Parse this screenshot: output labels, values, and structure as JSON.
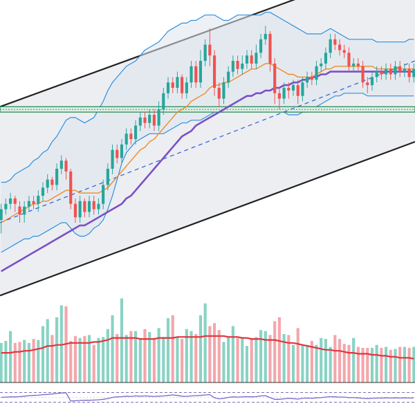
{
  "chart_data": {
    "type": "candlestick",
    "colors": {
      "up": "#26a69a",
      "down": "#ef5350",
      "volume_up": "#89d3c4",
      "volume_down": "#f4a6ab",
      "channel_fill": "#eceef2",
      "channel_line": "#222222",
      "bollinger": "#2f8fdc",
      "bollinger_fill": "#dfe6ee",
      "ma_fast": "#f08a24",
      "ma_slow": "#7b4fc4",
      "support_zone": "#2e8b57",
      "trend_dashed": "#3a66d8",
      "volume_ma": "#e0343e",
      "rsi": "#7d63c8",
      "rsi_guides": "#7a6fb0"
    },
    "price_panel": {
      "ylim": [
        0,
        100
      ],
      "candles": [
        [
          21,
          25,
          18,
          27,
          16
        ],
        [
          25,
          27,
          24,
          29,
          23
        ],
        [
          27,
          29,
          26,
          31,
          25
        ],
        [
          29,
          27,
          25,
          30,
          24
        ],
        [
          26,
          23,
          21,
          28,
          20
        ],
        [
          23,
          26,
          22,
          28,
          20
        ],
        [
          26,
          28,
          25,
          30,
          24
        ],
        [
          28,
          27,
          26,
          30,
          25
        ],
        [
          27,
          30,
          26,
          32,
          24
        ],
        [
          30,
          33,
          29,
          35,
          28
        ],
        [
          33,
          36,
          32,
          38,
          31
        ],
        [
          36,
          34,
          33,
          37,
          32
        ],
        [
          34,
          40,
          33,
          42,
          32
        ],
        [
          40,
          43,
          39,
          45,
          38
        ],
        [
          43,
          39,
          38,
          44,
          36
        ],
        [
          39,
          27,
          26,
          40,
          25
        ],
        [
          27,
          22,
          21,
          29,
          20
        ],
        [
          22,
          28,
          21,
          30,
          20
        ],
        [
          28,
          24,
          23,
          29,
          22
        ],
        [
          24,
          28,
          23,
          30,
          22
        ],
        [
          28,
          25,
          24,
          30,
          23
        ],
        [
          25,
          27,
          24,
          29,
          23
        ],
        [
          27,
          34,
          26,
          36,
          25
        ],
        [
          34,
          40,
          33,
          42,
          32
        ],
        [
          40,
          47,
          39,
          49,
          38
        ],
        [
          47,
          44,
          43,
          49,
          42
        ],
        [
          44,
          49,
          43,
          51,
          42
        ],
        [
          49,
          53,
          48,
          55,
          47
        ],
        [
          53,
          51,
          50,
          55,
          49
        ],
        [
          51,
          56,
          50,
          58,
          49
        ],
        [
          56,
          59,
          55,
          61,
          54
        ],
        [
          59,
          57,
          56,
          61,
          55
        ],
        [
          57,
          60,
          56,
          62,
          55
        ],
        [
          60,
          56,
          55,
          62,
          54
        ],
        [
          56,
          62,
          55,
          65,
          54
        ],
        [
          62,
          68,
          61,
          70,
          60
        ],
        [
          68,
          72,
          67,
          74,
          66
        ],
        [
          72,
          70,
          69,
          74,
          68
        ],
        [
          70,
          74,
          69,
          76,
          68
        ],
        [
          74,
          68,
          67,
          75,
          66
        ],
        [
          68,
          72,
          67,
          74,
          66
        ],
        [
          72,
          78,
          71,
          80,
          70
        ],
        [
          78,
          72,
          71,
          80,
          70
        ],
        [
          72,
          80,
          71,
          84,
          70
        ],
        [
          80,
          86,
          79,
          88,
          78
        ],
        [
          86,
          82,
          80,
          92,
          78
        ],
        [
          82,
          70,
          69,
          84,
          67
        ],
        [
          70,
          66,
          65,
          72,
          63
        ],
        [
          66,
          72,
          65,
          74,
          64
        ],
        [
          72,
          76,
          71,
          78,
          70
        ],
        [
          76,
          80,
          75,
          82,
          74
        ],
        [
          80,
          77,
          76,
          82,
          75
        ],
        [
          77,
          79,
          76,
          82,
          75
        ],
        [
          79,
          82,
          78,
          84,
          77
        ],
        [
          82,
          79,
          78,
          84,
          77
        ],
        [
          79,
          83,
          78,
          86,
          77
        ],
        [
          83,
          88,
          82,
          90,
          81
        ],
        [
          88,
          90,
          87,
          93,
          86
        ],
        [
          90,
          79,
          77,
          91,
          76
        ],
        [
          79,
          68,
          66,
          81,
          64
        ],
        [
          68,
          66,
          64,
          70,
          62
        ],
        [
          66,
          70,
          65,
          72,
          64
        ],
        [
          70,
          69,
          68,
          72,
          66
        ],
        [
          69,
          71,
          68,
          73,
          67
        ],
        [
          71,
          67,
          66,
          73,
          64
        ],
        [
          67,
          72,
          66,
          74,
          65
        ],
        [
          72,
          74,
          71,
          76,
          70
        ],
        [
          74,
          73,
          72,
          76,
          71
        ],
        [
          73,
          78,
          72,
          80,
          71
        ],
        [
          78,
          79,
          77,
          81,
          76
        ],
        [
          79,
          83,
          78,
          85,
          77
        ],
        [
          83,
          88,
          82,
          90,
          81
        ],
        [
          88,
          86,
          85,
          90,
          84
        ],
        [
          86,
          84,
          83,
          88,
          82
        ],
        [
          84,
          83,
          82,
          86,
          81
        ],
        [
          83,
          78,
          77,
          85,
          76
        ],
        [
          78,
          79,
          77,
          81,
          76
        ],
        [
          79,
          78,
          77,
          81,
          76
        ],
        [
          78,
          72,
          71,
          80,
          70
        ],
        [
          72,
          71,
          70,
          74,
          68
        ],
        [
          71,
          74,
          70,
          76,
          69
        ],
        [
          74,
          76,
          73,
          78,
          72
        ],
        [
          76,
          75,
          74,
          78,
          73
        ],
        [
          75,
          77,
          74,
          79,
          73
        ],
        [
          77,
          75,
          74,
          79,
          73
        ],
        [
          75,
          78,
          74,
          80,
          73
        ],
        [
          78,
          76,
          75,
          80,
          74
        ],
        [
          76,
          77,
          75,
          79,
          74
        ],
        [
          77,
          74,
          73,
          79,
          72
        ],
        [
          74,
          77,
          73,
          79,
          72
        ]
      ],
      "bollinger_upper": [
        35,
        35,
        36,
        38,
        39,
        40,
        41,
        43,
        44,
        46,
        47,
        50,
        52,
        55,
        58,
        59,
        59,
        58,
        57,
        58,
        59,
        62,
        65,
        69,
        72,
        74,
        76,
        78,
        79,
        80,
        82,
        84,
        85,
        86,
        87,
        89,
        91,
        92,
        93,
        94,
        94,
        95,
        95,
        96,
        97,
        97,
        97,
        96,
        95,
        95,
        96,
        97,
        97,
        97,
        97,
        97,
        97,
        98,
        98,
        97,
        96,
        95,
        94,
        93,
        92,
        91,
        90,
        90,
        90,
        90,
        91,
        92,
        91,
        90,
        89,
        88,
        88,
        88,
        88,
        88,
        88,
        87,
        87,
        87,
        87,
        87,
        87,
        87,
        88,
        88
      ],
      "bollinger_lower": [
        9,
        10,
        11,
        12,
        13,
        14,
        14,
        15,
        15,
        16,
        17,
        18,
        19,
        20,
        20,
        18,
        16,
        15,
        15,
        16,
        18,
        19,
        21,
        25,
        30,
        36,
        42,
        46,
        48,
        50,
        51,
        52,
        53,
        53,
        53,
        53,
        54,
        55,
        56,
        57,
        57,
        58,
        58,
        58,
        59,
        60,
        61,
        61,
        61,
        62,
        62,
        62,
        63,
        63,
        63,
        63,
        63,
        63,
        63,
        62,
        61,
        61,
        60,
        60,
        60,
        61,
        61,
        62,
        63,
        64,
        65,
        66,
        67,
        67,
        68,
        68,
        68,
        68,
        68,
        67,
        67,
        67,
        67,
        67,
        67,
        67,
        67,
        67,
        67,
        67
      ],
      "ma_fast": [
        20,
        21,
        22,
        23,
        24,
        25,
        26,
        27,
        27,
        28,
        28,
        29,
        30,
        31,
        32,
        32,
        32,
        31,
        31,
        31,
        31,
        31,
        32,
        33,
        35,
        37,
        39,
        41,
        43,
        45,
        47,
        48,
        50,
        51,
        53,
        55,
        57,
        59,
        61,
        62,
        63,
        65,
        66,
        67,
        68,
        70,
        71,
        71,
        72,
        72,
        73,
        74,
        75,
        76,
        77,
        77,
        78,
        79,
        79,
        78,
        77,
        76,
        75,
        75,
        74,
        74,
        74,
        74,
        75,
        76,
        77,
        77,
        78,
        78,
        78,
        78,
        78,
        78,
        78,
        78,
        78,
        77,
        77,
        77,
        77,
        77,
        77,
        77,
        77,
        77
      ],
      "ma_slow": [
        2,
        3,
        4,
        5,
        6,
        7,
        8,
        9,
        10,
        11,
        12,
        13,
        14,
        15,
        16,
        17,
        18,
        19,
        19,
        20,
        21,
        22,
        23,
        24,
        25,
        26,
        27,
        29,
        30,
        32,
        34,
        36,
        38,
        40,
        42,
        44,
        46,
        48,
        50,
        52,
        53,
        54,
        56,
        57,
        58,
        59,
        60,
        61,
        62,
        63,
        64,
        65,
        66,
        67,
        67,
        68,
        68,
        69,
        69,
        70,
        70,
        71,
        71,
        72,
        72,
        73,
        73,
        74,
        74,
        75,
        75,
        76,
        76,
        76,
        76,
        76,
        76,
        76,
        76,
        76,
        76,
        76,
        76,
        76,
        76,
        76,
        76,
        76,
        76,
        76
      ],
      "support_zone": [
        61,
        63
      ],
      "channel": {
        "upper_start": 63,
        "upper_end": 119,
        "lower_start": -7,
        "lower_end": 50
      },
      "dashed_trend": {
        "start": 20,
        "end": 80
      }
    },
    "volume_panel": {
      "ylim": [
        0,
        100
      ],
      "volumes": [
        40,
        42,
        52,
        40,
        41,
        43,
        40,
        44,
        43,
        57,
        64,
        48,
        66,
        78,
        77,
        42,
        47,
        45,
        47,
        48,
        38,
        45,
        46,
        54,
        68,
        49,
        85,
        48,
        52,
        52,
        45,
        54,
        51,
        45,
        55,
        46,
        65,
        68,
        46,
        44,
        54,
        52,
        49,
        68,
        80,
        57,
        60,
        53,
        41,
        47,
        57,
        45,
        46,
        37,
        45,
        46,
        53,
        52,
        48,
        62,
        66,
        49,
        48,
        38,
        55,
        38,
        38,
        42,
        38,
        45,
        44,
        36,
        48,
        44,
        39,
        38,
        45,
        36,
        35,
        35,
        35,
        38,
        35,
        36,
        33,
        34,
        36,
        36,
        35,
        36
      ],
      "volume_ma": [
        30,
        30,
        30,
        31,
        31,
        32,
        32,
        33,
        34,
        35,
        37,
        37,
        38,
        38,
        39,
        40,
        40,
        40,
        40,
        40,
        41,
        41,
        42,
        43,
        45,
        45,
        45,
        45,
        45,
        45,
        44,
        44,
        44,
        44,
        45,
        45,
        45,
        45,
        46,
        46,
        46,
        46,
        46,
        46,
        47,
        47,
        47,
        47,
        47,
        46,
        46,
        46,
        45,
        45,
        44,
        44,
        44,
        43,
        43,
        43,
        42,
        41,
        40,
        40,
        39,
        38,
        37,
        36,
        35,
        34,
        33,
        33,
        32,
        32,
        31,
        30,
        30,
        29,
        29,
        29,
        28,
        28,
        27,
        27,
        26,
        26,
        25,
        25,
        25,
        24
      ]
    },
    "rsi_panel": {
      "ylim": [
        0,
        100
      ],
      "guides": [
        30,
        70
      ],
      "values": [
        50,
        51,
        52,
        52,
        53,
        55,
        57,
        58,
        59,
        61,
        62,
        64,
        66,
        68,
        69,
        35,
        36,
        37,
        38,
        38,
        39,
        40,
        42,
        45,
        50,
        52,
        53,
        55,
        54,
        56,
        55,
        56,
        55,
        54,
        55,
        56,
        58,
        60,
        58,
        55,
        54,
        56,
        57,
        58,
        60,
        61,
        48,
        44,
        46,
        50,
        52,
        51,
        52,
        53,
        52,
        53,
        56,
        57,
        49,
        42,
        42,
        44,
        46,
        45,
        43,
        46,
        47,
        46,
        48,
        49,
        51,
        53,
        52,
        51,
        51,
        49,
        49,
        48,
        46,
        45,
        46,
        47,
        47,
        48,
        47,
        48,
        47,
        48,
        47,
        48
      ]
    }
  }
}
